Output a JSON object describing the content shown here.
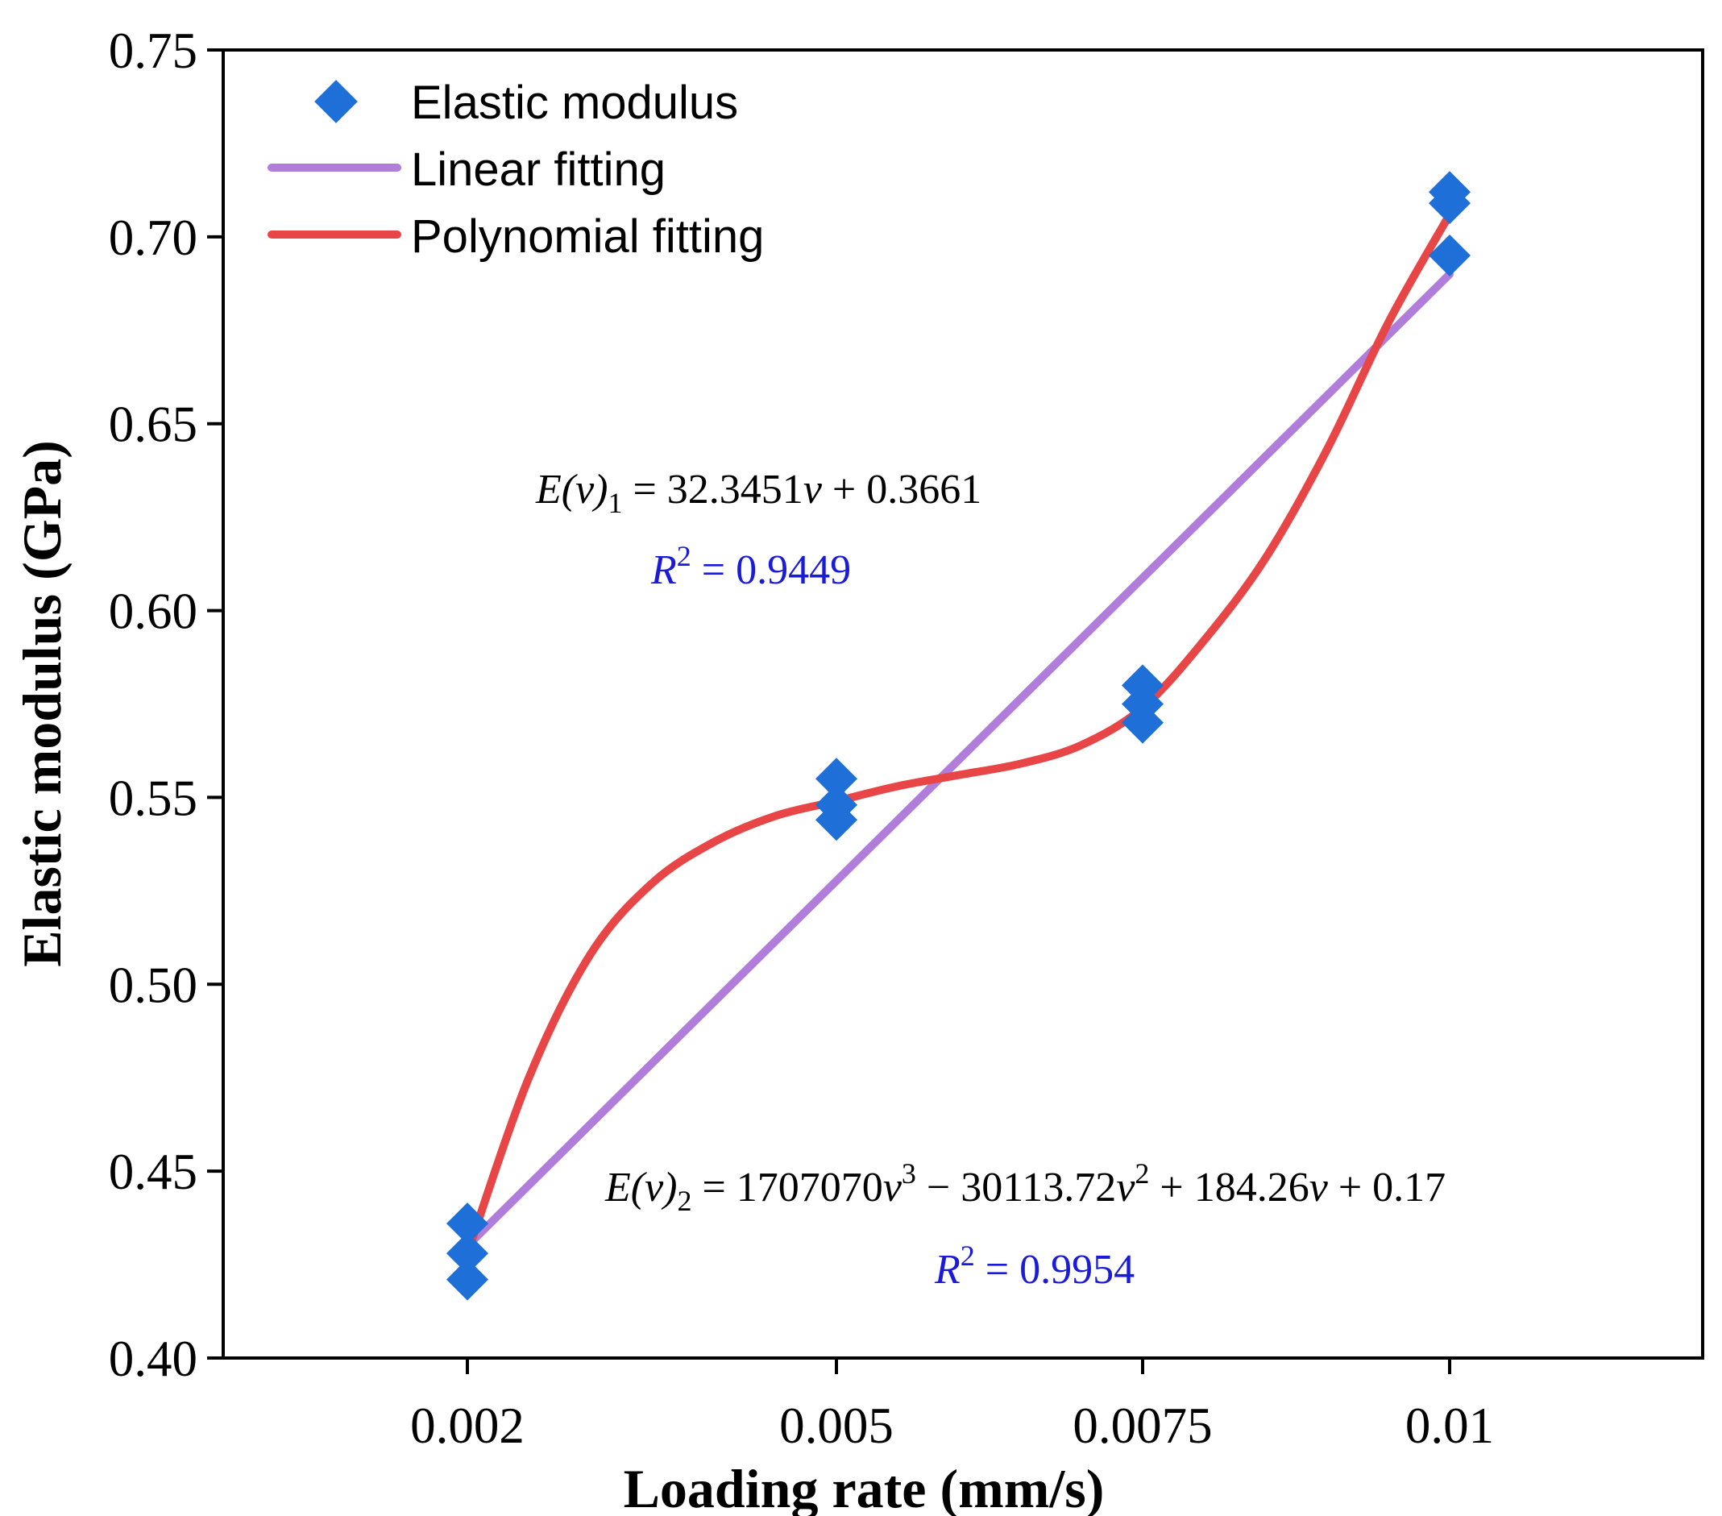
{
  "chart_data": {
    "type": "scatter",
    "title": "",
    "xlabel": "Loading rate (mm/s)",
    "ylabel": "Elastic modulus (GPa)",
    "categories": [
      "0.002",
      "0.005",
      "0.0075",
      "0.01"
    ],
    "x_values": [
      0.002,
      0.005,
      0.0075,
      0.01
    ],
    "ylim": [
      0.4,
      0.75
    ],
    "yticks": [
      "0.40",
      "0.45",
      "0.50",
      "0.55",
      "0.60",
      "0.65",
      "0.70",
      "0.75"
    ],
    "grid": false,
    "legend_position": "top-left",
    "series": [
      {
        "name": "Elastic modulus",
        "kind": "points",
        "color": "#1f6fd8",
        "points": [
          {
            "x": 0.002,
            "y": 0.436
          },
          {
            "x": 0.002,
            "y": 0.428
          },
          {
            "x": 0.002,
            "y": 0.421
          },
          {
            "x": 0.005,
            "y": 0.555
          },
          {
            "x": 0.005,
            "y": 0.548
          },
          {
            "x": 0.005,
            "y": 0.544
          },
          {
            "x": 0.0075,
            "y": 0.58
          },
          {
            "x": 0.0075,
            "y": 0.575
          },
          {
            "x": 0.0075,
            "y": 0.57
          },
          {
            "x": 0.01,
            "y": 0.712
          },
          {
            "x": 0.01,
            "y": 0.709
          },
          {
            "x": 0.01,
            "y": 0.695
          }
        ]
      },
      {
        "name": "Linear fitting",
        "kind": "line",
        "color": "#b07ddb",
        "points": [
          {
            "x": 0.002,
            "y": 0.43
          },
          {
            "x": 0.01,
            "y": 0.69
          }
        ]
      },
      {
        "name": "Polynomial fitting",
        "kind": "curve",
        "color": "#e84646",
        "points": [
          {
            "x": 0.002,
            "y": 0.428
          },
          {
            "x": 0.0025,
            "y": 0.475
          },
          {
            "x": 0.003,
            "y": 0.508
          },
          {
            "x": 0.0035,
            "y": 0.527
          },
          {
            "x": 0.004,
            "y": 0.538
          },
          {
            "x": 0.0045,
            "y": 0.545
          },
          {
            "x": 0.005,
            "y": 0.549
          },
          {
            "x": 0.0055,
            "y": 0.553
          },
          {
            "x": 0.006,
            "y": 0.556
          },
          {
            "x": 0.0065,
            "y": 0.559
          },
          {
            "x": 0.007,
            "y": 0.564
          },
          {
            "x": 0.0075,
            "y": 0.574
          },
          {
            "x": 0.008,
            "y": 0.592
          },
          {
            "x": 0.0085,
            "y": 0.614
          },
          {
            "x": 0.009,
            "y": 0.643
          },
          {
            "x": 0.0095,
            "y": 0.677
          },
          {
            "x": 0.01,
            "y": 0.706
          }
        ]
      }
    ],
    "annotations": {
      "linear_equation": {
        "main": "E(v)",
        "sub": "1",
        "rest": " = 32.3451",
        "var": "v",
        "tail": " + 0.3661"
      },
      "linear_r2": {
        "label": "R",
        "sup": "2",
        "rest": " = 0.9449",
        "color": "#1a1adb"
      },
      "poly_equation": {
        "main": "E(v)",
        "sub": "2",
        "eq": " = 1707070",
        "v1": "v",
        "p1": "3",
        "minus": " − 30113.72",
        "v2": "v",
        "p2": "2",
        "plus1": " + 184.26",
        "v3": "v",
        "tail": " + 0.17"
      },
      "poly_r2": {
        "label": "R",
        "sup": "2",
        "rest": " = 0.9954",
        "color": "#1a1adb"
      }
    }
  }
}
